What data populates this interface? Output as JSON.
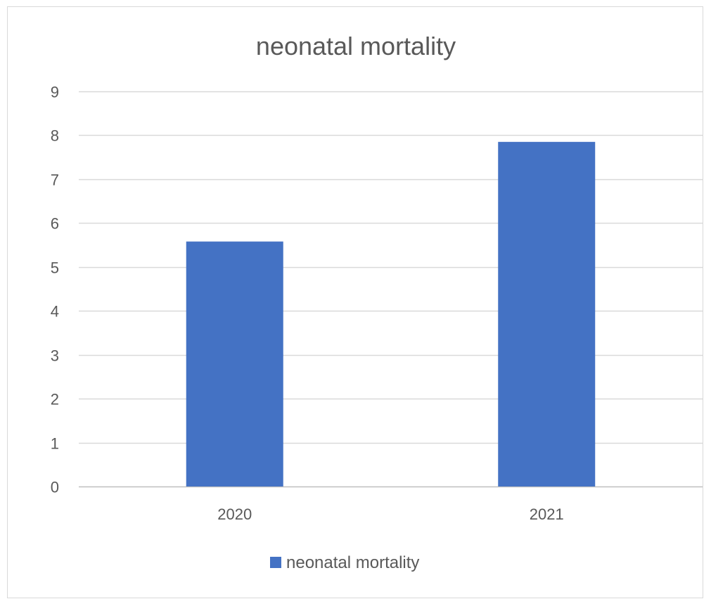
{
  "chart_data": {
    "type": "bar",
    "title": "neonatal mortality",
    "categories": [
      "2020",
      "2021"
    ],
    "series": [
      {
        "name": "neonatal mortality",
        "values": [
          5.58,
          7.85
        ],
        "color": "#4472c4"
      }
    ],
    "ylim": [
      0,
      9
    ],
    "yticks": [
      0,
      1,
      2,
      3,
      4,
      5,
      6,
      7,
      8,
      9
    ],
    "grid": true,
    "legend": "bottom"
  }
}
